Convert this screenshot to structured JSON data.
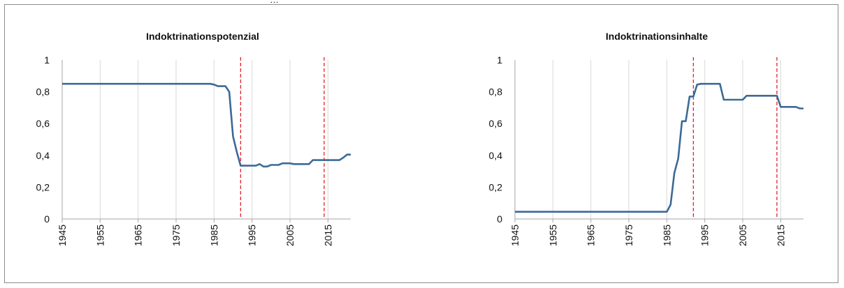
{
  "header_fragment": "…",
  "chart_data": [
    {
      "type": "line",
      "title": "Indoktrinationspotenzial",
      "xlabel": "",
      "ylabel": "",
      "xlim": [
        1945,
        2021
      ],
      "ylim": [
        0,
        1
      ],
      "x_ticks": [
        "1945",
        "1955",
        "1965",
        "1975",
        "1985",
        "1995",
        "2005",
        "2015"
      ],
      "y_ticks": [
        "0",
        "0,2",
        "0,4",
        "0,6",
        "0,8",
        "1"
      ],
      "grid": "vertical",
      "reference_lines": [
        1992,
        2014
      ],
      "series": [
        {
          "color": "#3c6a96",
          "points": [
            [
              1945,
              0.85
            ],
            [
              1984,
              0.85
            ],
            [
              1985,
              0.845
            ],
            [
              1986,
              0.835
            ],
            [
              1988,
              0.835
            ],
            [
              1989,
              0.8
            ],
            [
              1990,
              0.52
            ],
            [
              1991,
              0.42
            ],
            [
              1992,
              0.335
            ],
            [
              1996,
              0.335
            ],
            [
              1997,
              0.345
            ],
            [
              1998,
              0.33
            ],
            [
              1999,
              0.33
            ],
            [
              2000,
              0.34
            ],
            [
              2002,
              0.34
            ],
            [
              2003,
              0.35
            ],
            [
              2005,
              0.35
            ],
            [
              2006,
              0.345
            ],
            [
              2010,
              0.345
            ],
            [
              2011,
              0.37
            ],
            [
              2018,
              0.37
            ],
            [
              2019,
              0.385
            ],
            [
              2020,
              0.405
            ],
            [
              2021,
              0.405
            ]
          ]
        }
      ]
    },
    {
      "type": "line",
      "title": "Indoktrinationsinhalte",
      "xlabel": "",
      "ylabel": "",
      "xlim": [
        1945,
        2021
      ],
      "ylim": [
        0,
        1
      ],
      "x_ticks": [
        "1945",
        "1955",
        "1965",
        "1975",
        "1985",
        "1995",
        "2005",
        "2015"
      ],
      "y_ticks": [
        "0",
        "0,2",
        "0,4",
        "0,6",
        "0,8",
        "1"
      ],
      "grid": "vertical",
      "reference_lines": [
        1992,
        2014
      ],
      "series": [
        {
          "color": "#3c6a96",
          "points": [
            [
              1945,
              0.045
            ],
            [
              1985,
              0.045
            ],
            [
              1986,
              0.09
            ],
            [
              1987,
              0.29
            ],
            [
              1988,
              0.38
            ],
            [
              1989,
              0.615
            ],
            [
              1990,
              0.615
            ],
            [
              1991,
              0.77
            ],
            [
              1992,
              0.77
            ],
            [
              1993,
              0.845
            ],
            [
              1994,
              0.85
            ],
            [
              1999,
              0.85
            ],
            [
              2000,
              0.75
            ],
            [
              2005,
              0.75
            ],
            [
              2006,
              0.775
            ],
            [
              2014,
              0.775
            ],
            [
              2015,
              0.705
            ],
            [
              2019,
              0.705
            ],
            [
              2020,
              0.695
            ],
            [
              2021,
              0.695
            ]
          ]
        }
      ]
    }
  ]
}
